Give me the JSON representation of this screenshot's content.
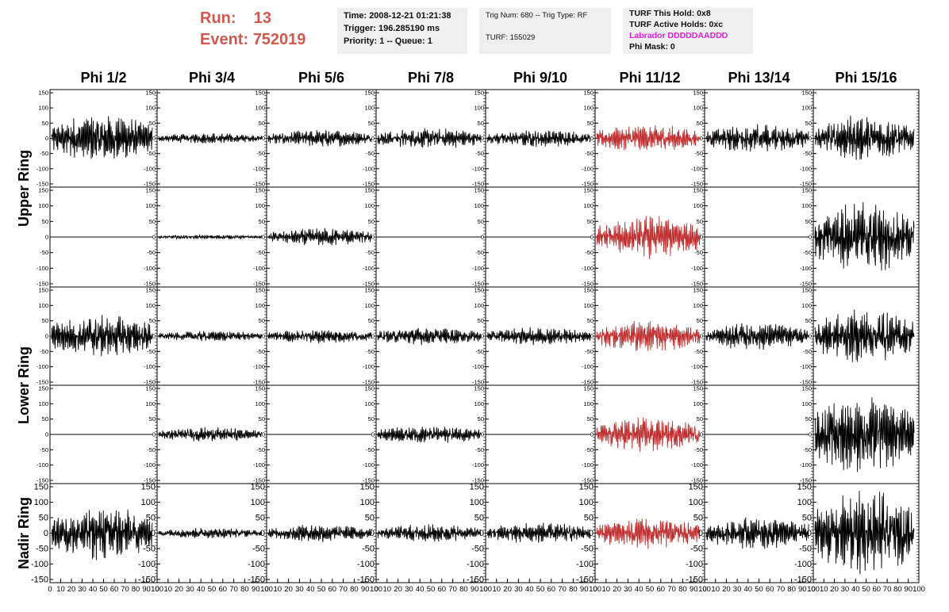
{
  "header": {
    "run_label": "Run:",
    "run_value": "13",
    "event_label": "Event:",
    "event_value": "752019",
    "time": "Time: 2008-12-21 01:21:38",
    "trigger": "Trigger: 196.285190 ms",
    "priority": "Priority: 1 -- Queue: 1",
    "trig_num": "Trig Num: 680 -- Trig Type: RF",
    "turf": "TURF: 155029",
    "turf_this_hold": "TURF This Hold: 0x8",
    "turf_active_holds": "TURF Active Holds: 0xc",
    "labrador": "Labrador DDDDDAADDD",
    "phi_mask": "Phi Mask: 0"
  },
  "colors": {
    "highlight": "#d0584d",
    "trace_normal": "#000000",
    "trace_triggered": "#c03030",
    "labrador": "#e020e0"
  },
  "chart_data": {
    "type": "line",
    "columns": [
      "Phi 1/2",
      "Phi 3/4",
      "Phi 5/6",
      "Phi 7/8",
      "Phi 9/10",
      "Phi 11/12",
      "Phi 13/14",
      "Phi 15/16"
    ],
    "ring_labels": [
      "Upper Ring",
      "Lower Ring",
      "Nadir Ring"
    ],
    "rows": 5,
    "ylim": [
      -150,
      150
    ],
    "xlim": [
      0,
      100
    ],
    "yticks": [
      -150,
      -100,
      -50,
      0,
      50,
      100,
      150
    ],
    "xticks": [
      0,
      10,
      20,
      30,
      40,
      50,
      60,
      70,
      80,
      90,
      100
    ],
    "triggered_column": "Phi 11/12",
    "trace_amplitudes": [
      [
        70,
        15,
        25,
        30,
        25,
        40,
        40,
        65
      ],
      [
        0,
        6,
        25,
        0,
        0,
        60,
        0,
        100
      ],
      [
        60,
        15,
        20,
        25,
        25,
        45,
        40,
        75
      ],
      [
        0,
        20,
        0,
        25,
        0,
        50,
        0,
        110
      ],
      [
        75,
        15,
        25,
        25,
        30,
        45,
        45,
        120
      ]
    ]
  }
}
